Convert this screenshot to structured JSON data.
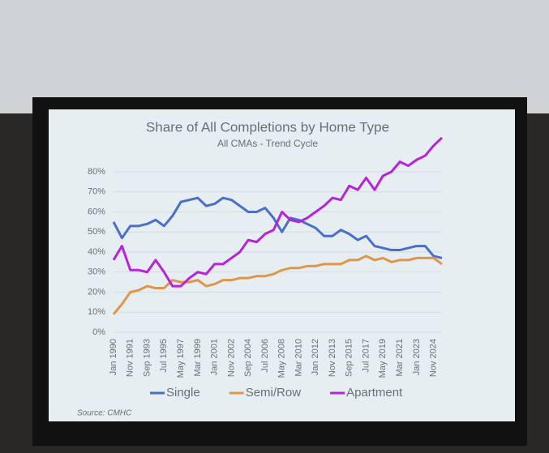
{
  "chart_data": {
    "type": "line",
    "title": "Share of All Completions by Home Type",
    "subtitle": "All CMAs - Trend Cycle",
    "source": "Source: CMHC",
    "categories": [
      "Jan 1990",
      null,
      "Nov 1991",
      null,
      "Sep 1993",
      null,
      "Jul 1995",
      null,
      "May 1997",
      null,
      "Mar 1999",
      null,
      "Jan 2001",
      null,
      "Nov 2002",
      null,
      "Sep 2004",
      null,
      "Jul 2006",
      null,
      "May 2008",
      null,
      "Mar 2010",
      null,
      "Jan 2012",
      null,
      "Nov 2013",
      null,
      "Sep 2015",
      null,
      "Jul 2017",
      null,
      "May 2019",
      null,
      "Mar 2021",
      null,
      "Jan 2023",
      null,
      "Nov 2024",
      null
    ],
    "series": [
      {
        "name": "Single",
        "color": "#4a6fc9",
        "values": [
          55,
          47,
          53,
          53,
          54,
          56,
          53,
          58,
          65,
          66,
          67,
          63,
          64,
          67,
          66,
          63,
          60,
          60,
          62,
          57,
          50,
          57,
          56,
          54,
          52,
          48,
          48,
          51,
          49,
          46,
          48,
          43,
          42,
          41,
          41,
          42,
          43,
          43,
          38,
          37
        ]
      },
      {
        "name": "Semi/Row",
        "color": "#e0964a",
        "values": [
          9,
          14,
          20,
          21,
          23,
          22,
          22,
          26,
          25,
          25,
          26,
          23,
          24,
          26,
          26,
          27,
          27,
          28,
          28,
          29,
          31,
          32,
          32,
          33,
          33,
          34,
          34,
          34,
          36,
          36,
          38,
          36,
          37,
          35,
          36,
          36,
          37,
          37,
          37,
          34
        ]
      },
      {
        "name": "Apartment",
        "color": "#b623d8",
        "values": [
          36,
          43,
          31,
          31,
          30,
          36,
          30,
          23,
          23,
          27,
          30,
          29,
          34,
          34,
          37,
          40,
          46,
          45,
          49,
          51,
          60,
          56,
          55,
          57,
          60,
          63,
          67,
          66,
          73,
          71,
          77,
          71,
          78,
          80,
          85,
          83,
          86,
          88,
          93,
          97
        ]
      }
    ],
    "ylim": [
      0,
      100
    ],
    "yticks": [
      {
        "value": 0,
        "label": "0%"
      },
      {
        "value": 10,
        "label": "10%"
      },
      {
        "value": 20,
        "label": "20%"
      },
      {
        "value": 30,
        "label": "30%"
      },
      {
        "value": 40,
        "label": "40%"
      },
      {
        "value": 50,
        "label": "50%"
      },
      {
        "value": 60,
        "label": "60%"
      },
      {
        "value": 70,
        "label": "70%"
      },
      {
        "value": 80,
        "label": "80%"
      }
    ],
    "grid": true
  }
}
